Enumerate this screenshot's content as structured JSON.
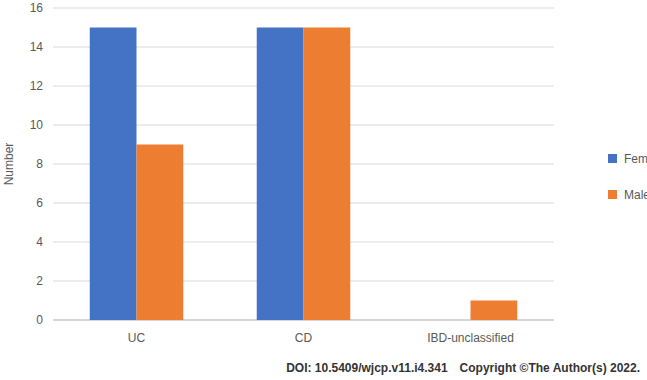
{
  "chart_data": {
    "type": "bar",
    "y_label": "Number",
    "categories": [
      "UC",
      "CD",
      "IBD-unclassified"
    ],
    "series": [
      {
        "name": "Female",
        "color": "#4472c4",
        "values": [
          15,
          15,
          0
        ]
      },
      {
        "name": "Male",
        "color": "#ed7d31",
        "values": [
          9,
          15,
          1
        ]
      }
    ],
    "ylim": [
      0,
      16
    ],
    "yticks": [
      0,
      2,
      4,
      6,
      8,
      10,
      12,
      14,
      16
    ],
    "grid": true,
    "legend": "right",
    "annotations": [
      "DOI: 10.5409/wjcp.v11.i4.341",
      "Copyright ©The Author(s) 2022."
    ]
  }
}
